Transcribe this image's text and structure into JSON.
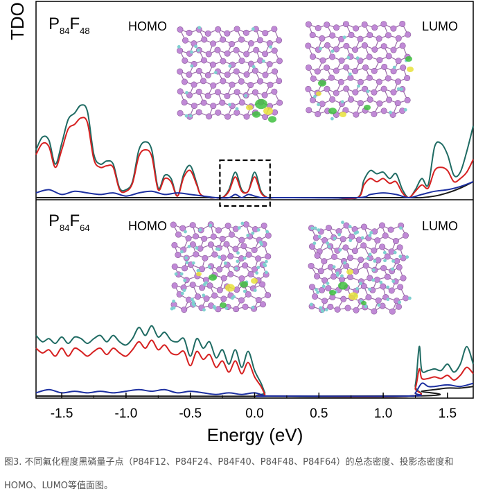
{
  "chart_data": {
    "type": "line",
    "ylabel": "TDO",
    "xlabel": "Energy (eV)",
    "xlim": [
      -1.7,
      1.7
    ],
    "xticks": [
      "-1.5",
      "-1.0",
      "-0.5",
      "0.0",
      "0.5",
      "1.0",
      "1.5"
    ],
    "xtick_values": [
      -1.5,
      -1.0,
      -0.5,
      0.0,
      0.5,
      1.0,
      1.5
    ],
    "panels": [
      {
        "label_main": "P",
        "label_sub1": "84",
        "label_mid": "F",
        "label_sub2": "48",
        "homo_label": "HOMO",
        "lumo_label": "LUMO",
        "ylim": [
          0,
          1.0
        ],
        "highlight_box_x": [
          -0.27,
          0.12
        ],
        "series": [
          {
            "color": "#1f6b63",
            "x": [
              -1.7,
              -1.65,
              -1.6,
              -1.55,
              -1.5,
              -1.45,
              -1.4,
              -1.35,
              -1.3,
              -1.25,
              -1.2,
              -1.15,
              -1.1,
              -1.05,
              -1.0,
              -0.95,
              -0.9,
              -0.85,
              -0.8,
              -0.75,
              -0.7,
              -0.65,
              -0.6,
              -0.55,
              -0.5,
              -0.45,
              -0.42,
              -0.35,
              -0.3,
              -0.25,
              -0.2,
              -0.15,
              -0.1,
              -0.05,
              0.0,
              0.05,
              0.1,
              0.15,
              0.3,
              0.6,
              0.8,
              0.85,
              0.9,
              0.95,
              1.0,
              1.05,
              1.1,
              1.15,
              1.2,
              1.25,
              1.3,
              1.35,
              1.4,
              1.45,
              1.5,
              1.55,
              1.6,
              1.65,
              1.7
            ],
            "y": [
              0.3,
              0.38,
              0.36,
              0.21,
              0.34,
              0.49,
              0.53,
              0.58,
              0.54,
              0.27,
              0.21,
              0.23,
              0.21,
              0.06,
              0.05,
              0.1,
              0.3,
              0.35,
              0.3,
              0.06,
              0.14,
              0.12,
              0.01,
              0.15,
              0.2,
              0.09,
              0.02,
              0.0,
              0.0,
              0.0,
              0.05,
              0.16,
              0.05,
              0.04,
              0.16,
              0.04,
              0.0,
              0.0,
              0.0,
              0.0,
              0.0,
              0.11,
              0.17,
              0.15,
              0.16,
              0.12,
              0.15,
              0.05,
              0.0,
              0.05,
              0.12,
              0.08,
              0.32,
              0.34,
              0.27,
              0.14,
              0.16,
              0.29,
              0.45
            ]
          },
          {
            "color": "#d62020",
            "x": [
              -1.7,
              -1.65,
              -1.6,
              -1.55,
              -1.5,
              -1.45,
              -1.4,
              -1.35,
              -1.3,
              -1.25,
              -1.2,
              -1.15,
              -1.1,
              -1.05,
              -1.0,
              -0.95,
              -0.9,
              -0.85,
              -0.8,
              -0.75,
              -0.7,
              -0.65,
              -0.6,
              -0.55,
              -0.5,
              -0.45,
              -0.42,
              -0.35,
              -0.3,
              -0.25,
              -0.2,
              -0.15,
              -0.1,
              -0.05,
              0.0,
              0.05,
              0.1,
              0.15,
              0.3,
              0.6,
              0.8,
              0.85,
              0.9,
              0.95,
              1.0,
              1.05,
              1.1,
              1.15,
              1.2,
              1.25,
              1.3,
              1.35,
              1.4,
              1.45,
              1.5,
              1.55,
              1.6,
              1.65,
              1.7
            ],
            "y": [
              0.27,
              0.34,
              0.32,
              0.19,
              0.3,
              0.43,
              0.46,
              0.5,
              0.47,
              0.24,
              0.19,
              0.2,
              0.19,
              0.05,
              0.04,
              0.09,
              0.26,
              0.3,
              0.26,
              0.05,
              0.12,
              0.1,
              0.01,
              0.13,
              0.17,
              0.08,
              0.02,
              0.0,
              0.0,
              0.0,
              0.04,
              0.13,
              0.04,
              0.04,
              0.13,
              0.03,
              0.0,
              0.0,
              0.0,
              0.0,
              0.0,
              0.08,
              0.12,
              0.1,
              0.12,
              0.09,
              0.1,
              0.03,
              0.0,
              0.04,
              0.08,
              0.06,
              0.17,
              0.19,
              0.17,
              0.1,
              0.12,
              0.16,
              0.24
            ]
          },
          {
            "color": "#1a1a1a",
            "x": [
              -1.7,
              1.0,
              1.2,
              1.3,
              1.4,
              1.5,
              1.6,
              1.7
            ],
            "y": [
              0.0,
              0.0,
              0.0,
              0.0,
              0.01,
              0.03,
              0.06,
              0.1
            ]
          },
          {
            "color": "#1c2fa0",
            "x": [
              -1.7,
              -1.6,
              -1.5,
              -1.4,
              -1.3,
              -1.2,
              -1.1,
              -1.0,
              -0.9,
              -0.8,
              -0.7,
              -0.6,
              -0.5,
              -0.4,
              -0.3,
              -0.2,
              -0.15,
              -0.1,
              -0.05,
              0.0,
              0.05,
              0.1,
              0.3,
              0.8,
              0.9,
              1.0,
              1.1,
              1.2,
              1.3,
              1.4,
              1.5,
              1.6,
              1.7
            ],
            "y": [
              0.03,
              0.05,
              0.02,
              0.04,
              0.03,
              0.02,
              0.03,
              0.01,
              0.03,
              0.04,
              0.02,
              0.03,
              0.02,
              0.01,
              0.0,
              0.0,
              0.02,
              0.0,
              0.02,
              0.01,
              0.0,
              0.0,
              0.0,
              0.0,
              0.02,
              0.03,
              0.02,
              0.0,
              0.02,
              0.04,
              0.05,
              0.07,
              0.1
            ]
          }
        ]
      },
      {
        "label_main": "P",
        "label_sub1": "84",
        "label_mid": "F",
        "label_sub2": "64",
        "homo_label": "HOMO",
        "lumo_label": "LUMO",
        "ylim": [
          0,
          1.0
        ],
        "series": [
          {
            "color": "#1f6b63",
            "x": [
              -1.7,
              -1.65,
              -1.6,
              -1.55,
              -1.5,
              -1.45,
              -1.4,
              -1.35,
              -1.3,
              -1.25,
              -1.2,
              -1.15,
              -1.1,
              -1.05,
              -1.0,
              -0.95,
              -0.9,
              -0.85,
              -0.8,
              -0.75,
              -0.7,
              -0.65,
              -0.6,
              -0.55,
              -0.5,
              -0.45,
              -0.4,
              -0.35,
              -0.3,
              -0.25,
              -0.2,
              -0.15,
              -0.1,
              -0.05,
              0.0,
              0.05,
              0.08,
              0.1,
              1.2,
              1.25,
              1.28,
              1.3,
              1.35,
              1.4,
              1.45,
              1.5,
              1.55,
              1.6,
              1.65,
              1.7
            ],
            "y": [
              0.38,
              0.34,
              0.36,
              0.33,
              0.37,
              0.33,
              0.37,
              0.36,
              0.33,
              0.36,
              0.38,
              0.34,
              0.38,
              0.34,
              0.32,
              0.36,
              0.43,
              0.38,
              0.44,
              0.37,
              0.4,
              0.35,
              0.34,
              0.36,
              0.25,
              0.36,
              0.3,
              0.34,
              0.24,
              0.29,
              0.2,
              0.29,
              0.18,
              0.28,
              0.16,
              0.08,
              0.02,
              0.0,
              0.0,
              0.07,
              0.31,
              0.16,
              0.16,
              0.17,
              0.16,
              0.2,
              0.15,
              0.2,
              0.31,
              0.2
            ]
          },
          {
            "color": "#d62020",
            "x": [
              -1.7,
              -1.65,
              -1.6,
              -1.55,
              -1.5,
              -1.45,
              -1.4,
              -1.35,
              -1.3,
              -1.25,
              -1.2,
              -1.15,
              -1.1,
              -1.05,
              -1.0,
              -0.95,
              -0.9,
              -0.85,
              -0.8,
              -0.75,
              -0.7,
              -0.65,
              -0.6,
              -0.55,
              -0.5,
              -0.45,
              -0.4,
              -0.35,
              -0.3,
              -0.25,
              -0.2,
              -0.15,
              -0.1,
              -0.05,
              0.0,
              0.05,
              0.08,
              0.1,
              1.2,
              1.25,
              1.28,
              1.3,
              1.35,
              1.4,
              1.45,
              1.5,
              1.55,
              1.6,
              1.65,
              1.7
            ],
            "y": [
              0.3,
              0.27,
              0.29,
              0.25,
              0.3,
              0.25,
              0.3,
              0.28,
              0.25,
              0.28,
              0.3,
              0.26,
              0.3,
              0.27,
              0.25,
              0.29,
              0.34,
              0.3,
              0.35,
              0.29,
              0.32,
              0.27,
              0.26,
              0.28,
              0.19,
              0.28,
              0.23,
              0.26,
              0.18,
              0.22,
              0.15,
              0.22,
              0.14,
              0.21,
              0.12,
              0.06,
              0.01,
              0.0,
              0.0,
              0.05,
              0.17,
              0.11,
              0.11,
              0.12,
              0.11,
              0.13,
              0.1,
              0.13,
              0.18,
              0.14
            ]
          },
          {
            "color": "#1a1a1a",
            "x": [
              -1.7,
              1.2,
              1.3,
              1.4,
              1.5,
              1.6,
              1.7
            ],
            "y": [
              0.0,
              0.0,
              0.03,
              0.04,
              0.05,
              0.05,
              0.06
            ]
          },
          {
            "color": "#1c2fa0",
            "x": [
              -1.7,
              -1.6,
              -1.5,
              -1.4,
              -1.3,
              -1.2,
              -1.1,
              -1.0,
              -0.9,
              -0.8,
              -0.7,
              -0.6,
              -0.5,
              -0.4,
              -0.3,
              -0.2,
              -0.1,
              0.0,
              0.08,
              0.1,
              1.2,
              1.25,
              1.3,
              1.35,
              1.4,
              1.5,
              1.6,
              1.7
            ],
            "y": [
              0.02,
              0.04,
              0.02,
              0.03,
              0.02,
              0.03,
              0.02,
              0.03,
              0.04,
              0.03,
              0.04,
              0.02,
              0.03,
              0.02,
              0.01,
              0.02,
              0.01,
              0.02,
              0.0,
              0.0,
              0.0,
              0.02,
              0.08,
              0.06,
              0.06,
              0.07,
              0.06,
              0.08
            ]
          }
        ]
      }
    ]
  },
  "caption": {
    "text": "图3. 不同氟化程度黑磷量子点（P84F12、P84F24、P84F40、P84F48、P84F64）的总态密度、投影态密度和HOMO、LUMO等值面图。"
  },
  "colors": {
    "atom_p": "#c089d6",
    "atom_f": "#7fd0d0",
    "isosurface_green": "#3fbf3f",
    "isosurface_yellow": "#e8e23a"
  }
}
